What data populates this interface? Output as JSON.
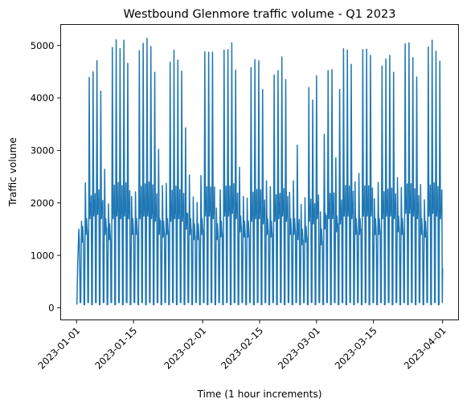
{
  "chart_data": {
    "type": "line",
    "title": "Westbound Glenmore traffic volume - Q1 2023",
    "xlabel": "Time (1 hour increments)",
    "ylabel": "Traffic volume",
    "x_range": [
      "2023-01-01",
      "2023-04-01"
    ],
    "ylim": [
      -230,
      5400
    ],
    "x_ticks": [
      "2023-01-01",
      "2023-01-15",
      "2023-02-01",
      "2023-02-15",
      "2023-03-01",
      "2023-03-15",
      "2023-04-01"
    ],
    "y_ticks": [
      "0",
      "1000",
      "2000",
      "3000",
      "4000",
      "5000"
    ],
    "y_tick_values": [
      0,
      1000,
      2000,
      3000,
      4000,
      5000
    ],
    "grid": false,
    "series": [
      {
        "color": "#1f77b4",
        "x_unit": "hourly from 2023-01-01 00:00",
        "daily_peak": [
          820,
          1650,
          2380,
          4390,
          4500,
          4710,
          4130,
          2640,
          1980,
          4960,
          5110,
          4940,
          5100,
          4660,
          2120,
          2210,
          4900,
          5040,
          5140,
          4980,
          4490,
          3020,
          2330,
          2370,
          4680,
          4910,
          4720,
          4510,
          3430,
          2530,
          2110,
          2010,
          2520,
          4880,
          4870,
          4870,
          1900,
          2250,
          4910,
          4920,
          5050,
          4530,
          2680,
          2120,
          2090,
          4580,
          4730,
          4710,
          4160,
          2420,
          2310,
          4440,
          4520,
          4780,
          4350,
          2200,
          2420,
          3100,
          1970,
          2100,
          4200,
          3960,
          4420,
          1830,
          3310,
          4520,
          4540,
          2860,
          4160,
          4940,
          4910,
          4640,
          2400,
          2560,
          4920,
          4930,
          4810,
          2080,
          2390,
          4610,
          4740,
          4810,
          4490,
          2480,
          2290,
          5030,
          5050,
          4770,
          4400,
          2350,
          2060,
          4970,
          5100,
          4890,
          4700
        ],
        "secondary_peak": [
          1500,
          1550,
          1700,
          2000,
          2050,
          2080,
          2000,
          1700,
          1600,
          2000,
          2050,
          2000,
          2050,
          2000,
          1700,
          1700,
          2000,
          2050,
          2050,
          2000,
          1950,
          1700,
          1650,
          1700,
          1950,
          2000,
          2000,
          1950,
          1800,
          1700,
          1600,
          1600,
          1700,
          2050,
          2050,
          2000,
          1600,
          1650,
          2050,
          2050,
          2100,
          2000,
          1750,
          1650,
          1650,
          1950,
          2000,
          2000,
          1900,
          1700,
          1650,
          1950,
          2000,
          2050,
          1950,
          1700,
          1700,
          1600,
          1500,
          1550,
          1950,
          1900,
          2000,
          1500,
          1800,
          2000,
          2000,
          1750,
          1900,
          2050,
          2050,
          2000,
          1700,
          1700,
          2050,
          2050,
          2050,
          1700,
          1700,
          2000,
          2050,
          2050,
          2000,
          1750,
          1700,
          2100,
          2100,
          2050,
          2000,
          1700,
          1650,
          2050,
          2100,
          2050,
          2000
        ],
        "overnight_min": [
          60,
          100
        ],
        "final_value": 750
      }
    ]
  }
}
